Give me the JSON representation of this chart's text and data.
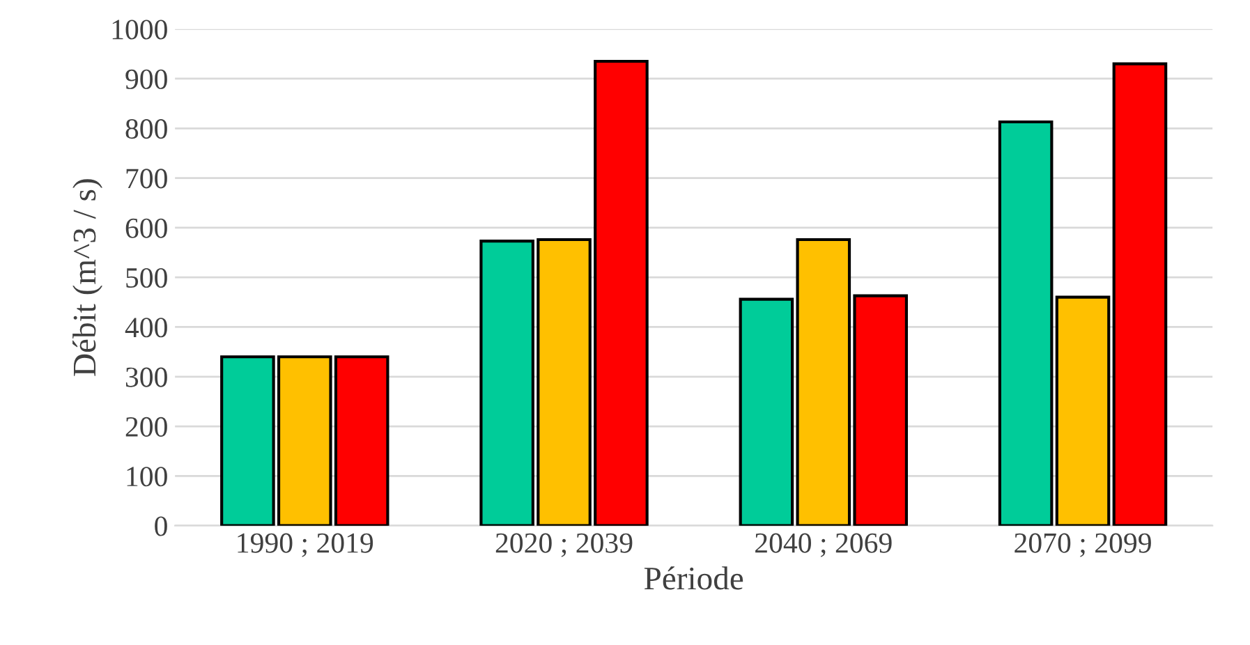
{
  "chart_data": {
    "type": "bar",
    "xlabel": "Période",
    "ylabel": "Débit (m^3 / s)",
    "categories": [
      "1990 ; 2019",
      "2020 ; 2039",
      "2040 ; 2069",
      "2070 ; 2099"
    ],
    "series": [
      {
        "color": "#00cc99",
        "values": [
          340,
          573,
          456,
          813
        ]
      },
      {
        "color": "#ffc000",
        "values": [
          340,
          576,
          576,
          460
        ]
      },
      {
        "color": "#ff0000",
        "values": [
          340,
          935,
          463,
          930
        ]
      }
    ],
    "ylim": [
      0,
      1000
    ],
    "yticks": [
      0,
      100,
      200,
      300,
      400,
      500,
      600,
      700,
      800,
      900,
      1000
    ],
    "grid": "y",
    "legend": false
  }
}
